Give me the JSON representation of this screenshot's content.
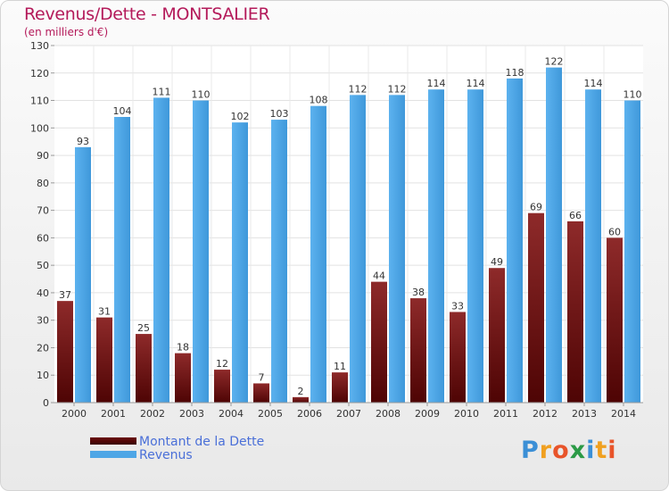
{
  "chart": {
    "title": "Revenus/Dette - MONTSALIER",
    "subtitle": "(en milliers d'€)"
  },
  "chart_data": {
    "type": "bar",
    "title": "Revenus/Dette - MONTSALIER",
    "subtitle": "(en milliers d'€)",
    "xlabel": "",
    "ylabel": "",
    "categories": [
      "2000",
      "2001",
      "2002",
      "2003",
      "2004",
      "2005",
      "2006",
      "2007",
      "2008",
      "2009",
      "2010",
      "2011",
      "2012",
      "2013",
      "2014"
    ],
    "series": [
      {
        "name": "Montant de la Dette",
        "color": "#7a1a1a",
        "values": [
          37,
          31,
          25,
          18,
          12,
          7,
          2,
          11,
          44,
          38,
          33,
          49,
          69,
          66,
          60
        ]
      },
      {
        "name": "Revenus",
        "color": "#4ea6e6",
        "values": [
          93,
          104,
          111,
          110,
          102,
          103,
          108,
          112,
          112,
          114,
          114,
          118,
          122,
          114,
          110
        ]
      }
    ],
    "ylim": [
      0,
      130
    ],
    "yticks": [
      0,
      10,
      20,
      30,
      40,
      50,
      60,
      70,
      80,
      90,
      100,
      110,
      120,
      130
    ],
    "grid": true,
    "data_labels": true,
    "legend_position": "bottom-left"
  },
  "legend": {
    "items": [
      {
        "label": "Montant de la Dette",
        "color": "#6b0f0f"
      },
      {
        "label": "Revenus",
        "color": "#4ea6e6"
      }
    ]
  },
  "brand": {
    "letters": [
      "P",
      "r",
      "o",
      "x",
      "i",
      "t",
      "i"
    ],
    "colors": [
      "#3b8fd6",
      "#f0a020",
      "#e8542a",
      "#2b9a46",
      "#3b8fd6",
      "#f0a020",
      "#e8542a"
    ]
  }
}
